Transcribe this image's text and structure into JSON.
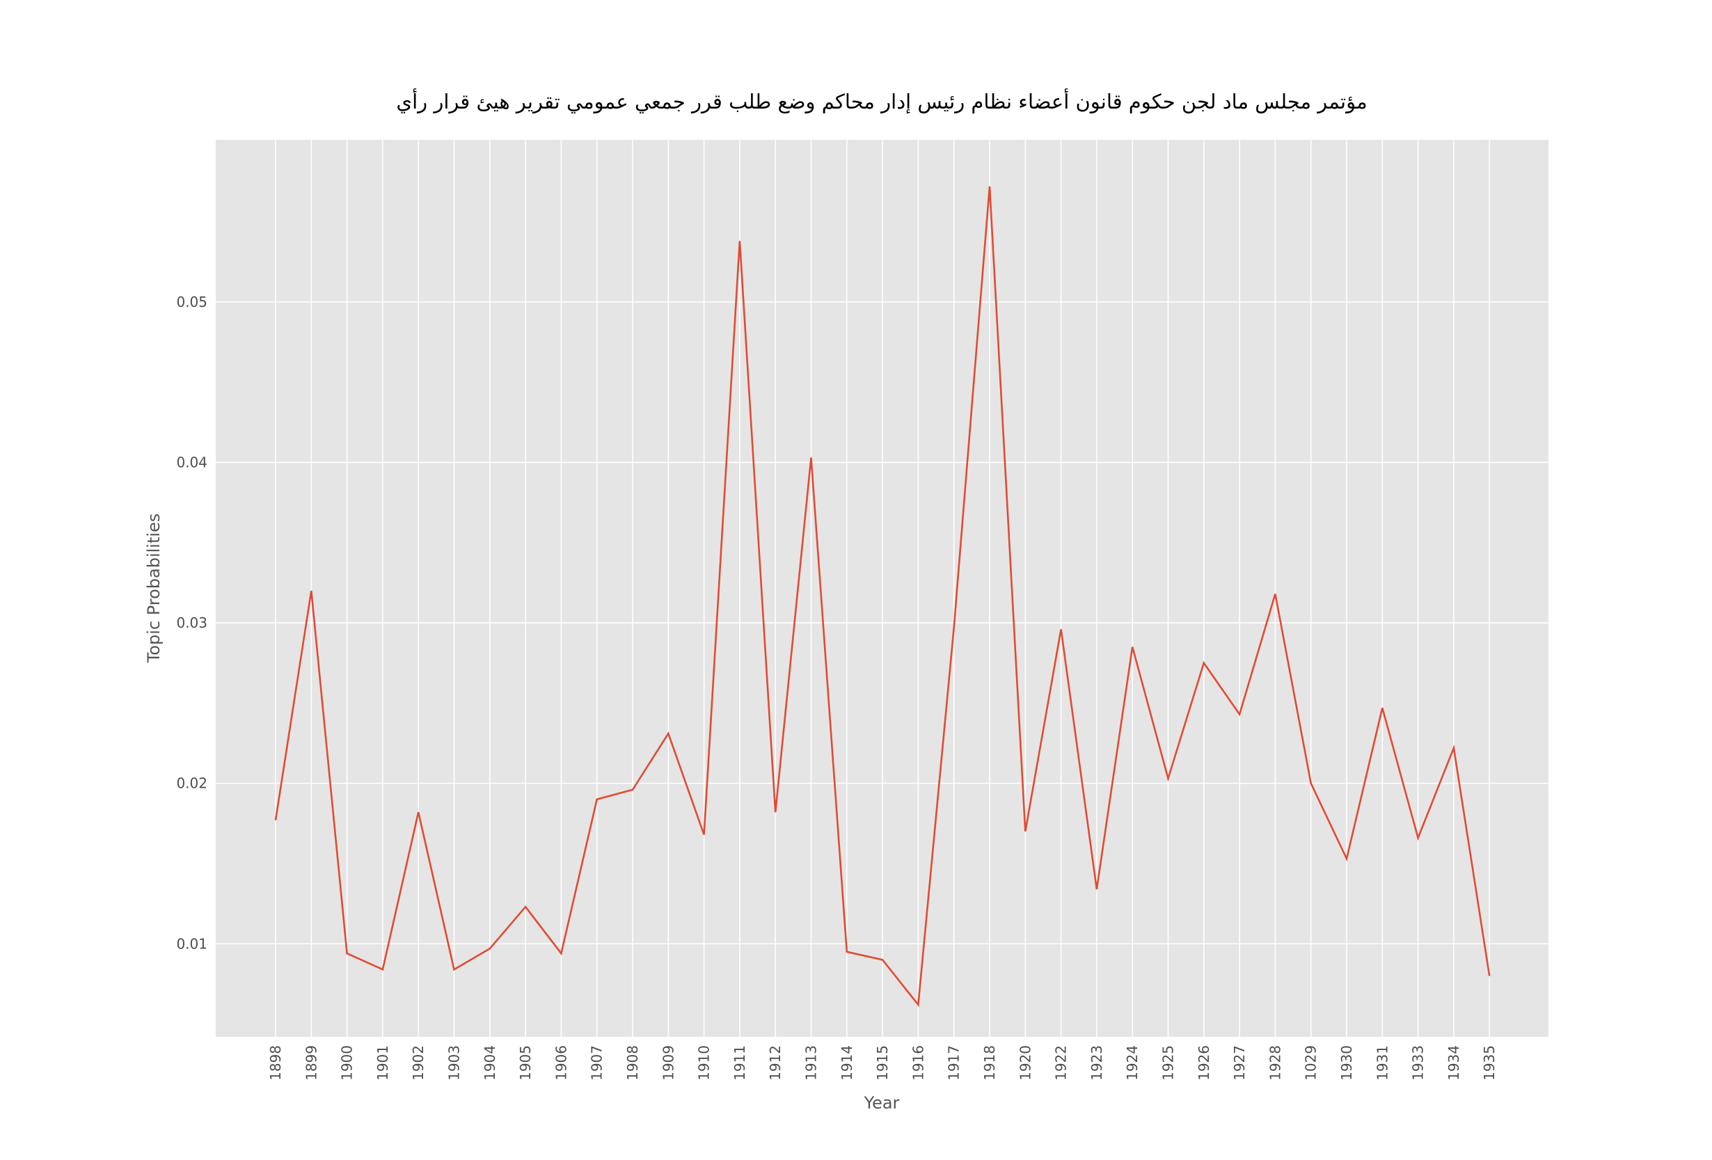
{
  "chart_data": {
    "type": "line",
    "title": "مؤتمر مجلس ماد لجن حكوم قانون أعضاء نظام رئيس إدار محاكم وضع طلب قرر جمعي عمومي تقرير هيئ قرار رأي",
    "xlabel": "Year",
    "ylabel": "Topic Probabilities",
    "categories": [
      "1898",
      "1899",
      "1900",
      "1901",
      "1902",
      "1903",
      "1904",
      "1905",
      "1906",
      "1907",
      "1908",
      "1909",
      "1910",
      "1911",
      "1912",
      "1913",
      "1914",
      "1915",
      "1916",
      "1917",
      "1918",
      "1920",
      "1922",
      "1923",
      "1924",
      "1925",
      "1926",
      "1927",
      "1928",
      "1029",
      "1930",
      "1931",
      "1933",
      "1934",
      "1935"
    ],
    "values": [
      0.0177,
      0.032,
      0.0094,
      0.0084,
      0.0182,
      0.0084,
      0.0097,
      0.0123,
      0.0094,
      0.019,
      0.0196,
      0.0231,
      0.0168,
      0.0538,
      0.0182,
      0.0403,
      0.0095,
      0.009,
      0.0062,
      0.0297,
      0.0572,
      0.017,
      0.0296,
      0.0134,
      0.0285,
      0.0203,
      0.0275,
      0.0243,
      0.0318,
      0.02,
      0.0153,
      0.0247,
      0.0166,
      0.0222,
      0.008
    ],
    "yticks": [
      "0.01",
      "0.02",
      "0.03",
      "0.04",
      "0.05"
    ],
    "ylim": [
      0.0042,
      0.0601
    ],
    "grid": true,
    "legend": false,
    "colors": {
      "line": "#e24a33",
      "plot_background": "#e5e5e5",
      "grid": "#ffffff"
    }
  }
}
